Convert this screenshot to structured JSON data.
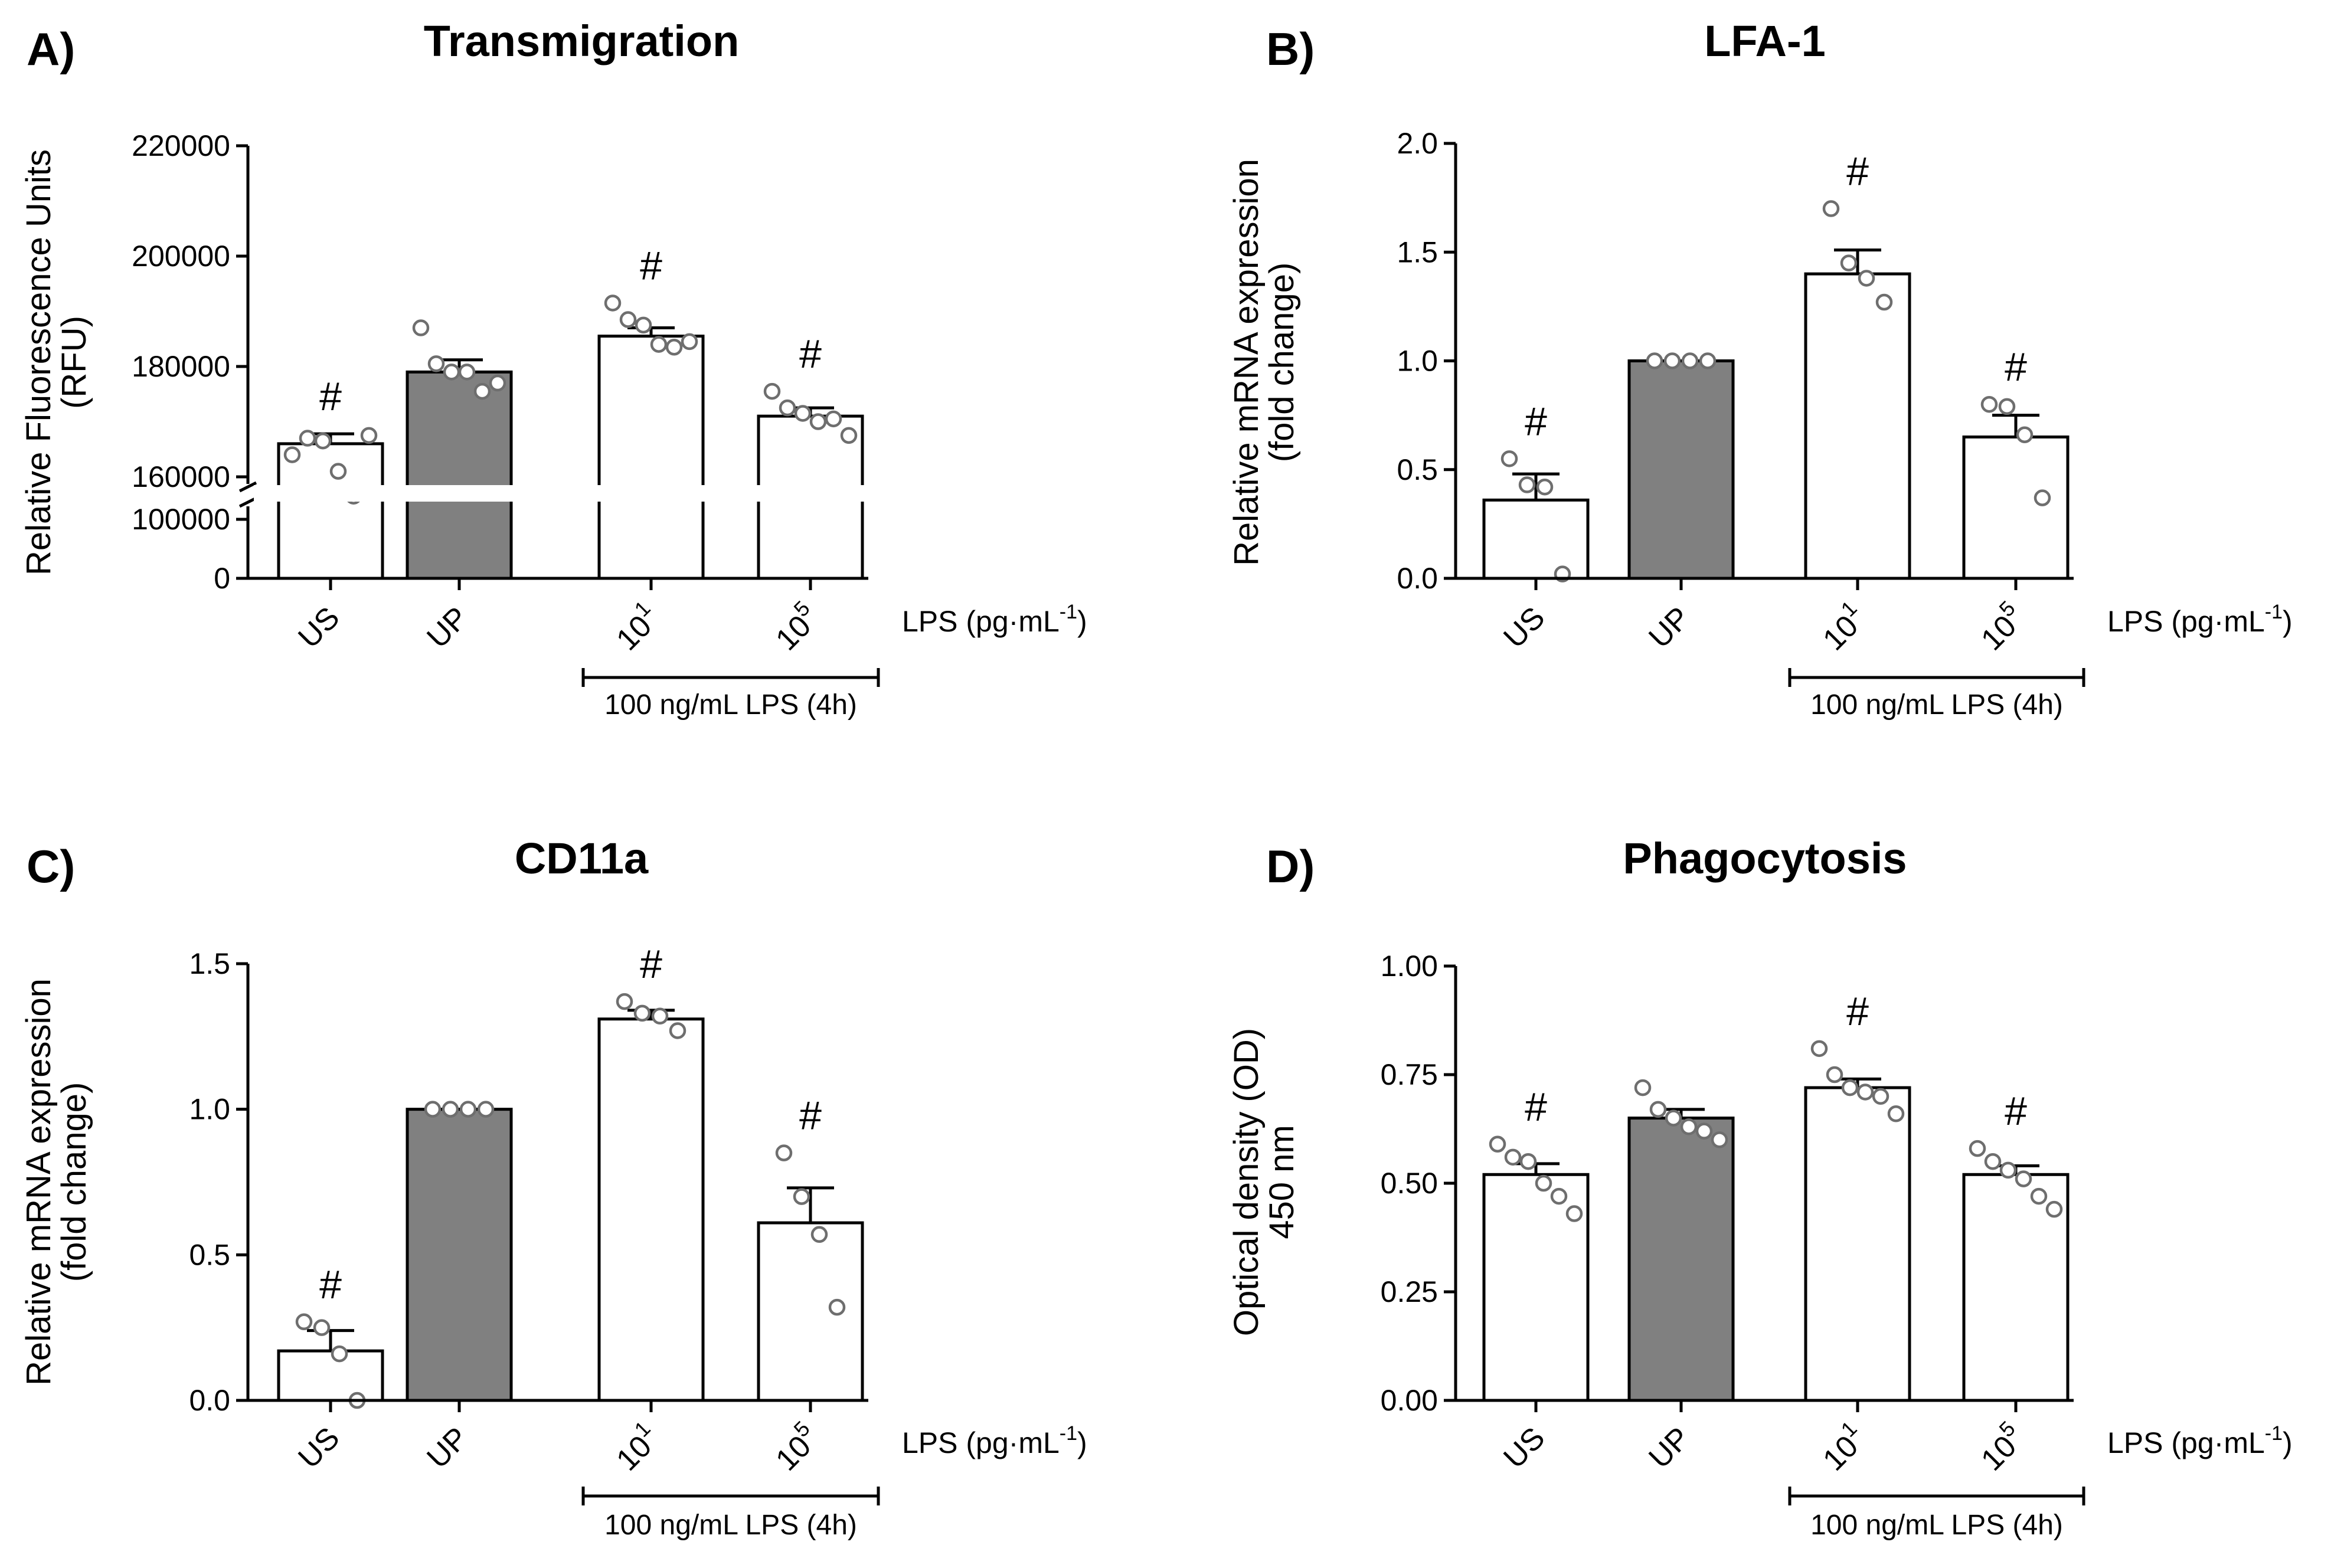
{
  "colors": {
    "bar_control": "#808080",
    "bar_default": "#ffffff",
    "axis": "#000000",
    "dot_edge": "#6e6e6e"
  },
  "chart_data": [
    {
      "panel": "A)",
      "type": "bar",
      "title": "Transmigration",
      "ylabel": [
        "Relative Fluorescence Units",
        "(RFU)"
      ],
      "categories": [
        "US",
        "UP",
        "10^1",
        "10^5"
      ],
      "category_labels": [
        {
          "base": "US",
          "sup": ""
        },
        {
          "base": "UP",
          "sup": ""
        },
        {
          "base": "10",
          "sup": "1"
        },
        {
          "base": "10",
          "sup": "5"
        }
      ],
      "x_unit": {
        "prefix": "LPS (pg·mL",
        "sup": "-1",
        "suffix": ")"
      },
      "group_label": "100 ng/mL LPS (4h)",
      "group_span": [
        "10^1",
        "10^5"
      ],
      "filled_category": "UP",
      "broken_axis": true,
      "ylim_lower": [
        0,
        100000
      ],
      "ylim_upper": [
        160000,
        220000
      ],
      "yticks_lower": [
        0,
        100000
      ],
      "yticks_upper": [
        160000,
        180000,
        200000,
        220000
      ],
      "ytick_labels_lower": [
        "0",
        "100000"
      ],
      "ytick_labels_upper": [
        "160000",
        "180000",
        "200000",
        "220000"
      ],
      "values": [
        166000,
        179000,
        185500,
        171000
      ],
      "errors": [
        1800,
        2200,
        1500,
        1500
      ],
      "points": [
        [
          164000,
          167000,
          166500,
          161000,
          156500,
          167500
        ],
        [
          187000,
          180500,
          179000,
          179000,
          175500,
          177000
        ],
        [
          191500,
          188500,
          187500,
          184000,
          183500,
          184500
        ],
        [
          175500,
          172500,
          171500,
          170000,
          170500,
          167500
        ]
      ],
      "significance": [
        "#",
        "",
        "#",
        "#"
      ]
    },
    {
      "panel": "B)",
      "type": "bar",
      "title": "LFA-1",
      "ylabel": [
        "Relative mRNA expression",
        "(fold change)"
      ],
      "categories": [
        "US",
        "UP",
        "10^1",
        "10^5"
      ],
      "category_labels": [
        {
          "base": "US",
          "sup": ""
        },
        {
          "base": "UP",
          "sup": ""
        },
        {
          "base": "10",
          "sup": "1"
        },
        {
          "base": "10",
          "sup": "5"
        }
      ],
      "x_unit": {
        "prefix": "LPS (pg·mL",
        "sup": "-1",
        "suffix": ")"
      },
      "group_label": "100 ng/mL LPS (4h)",
      "group_span": [
        "10^1",
        "10^5"
      ],
      "filled_category": "UP",
      "ylim": [
        0,
        2.0
      ],
      "yticks": [
        0,
        0.5,
        1.0,
        1.5,
        2.0
      ],
      "ytick_labels": [
        "0.0",
        "0.5",
        "1.0",
        "1.5",
        "2.0"
      ],
      "values": [
        0.36,
        1.0,
        1.4,
        0.65
      ],
      "errors": [
        0.12,
        0.0,
        0.11,
        0.1
      ],
      "points": [
        [
          0.55,
          0.43,
          0.42,
          0.02
        ],
        [
          1.0,
          1.0,
          1.0,
          1.0
        ],
        [
          1.7,
          1.45,
          1.38,
          1.27
        ],
        [
          0.8,
          0.79,
          0.66,
          0.37
        ]
      ],
      "significance": [
        "#",
        "",
        "#",
        "#"
      ]
    },
    {
      "panel": "C)",
      "type": "bar",
      "title": "CD11a",
      "ylabel": [
        "Relative mRNA expression",
        "(fold change)"
      ],
      "categories": [
        "US",
        "UP",
        "10^1",
        "10^5"
      ],
      "category_labels": [
        {
          "base": "US",
          "sup": ""
        },
        {
          "base": "UP",
          "sup": ""
        },
        {
          "base": "10",
          "sup": "1"
        },
        {
          "base": "10",
          "sup": "5"
        }
      ],
      "x_unit": {
        "prefix": "LPS (pg·mL",
        "sup": "-1",
        "suffix": ")"
      },
      "group_label": "100 ng/mL LPS (4h)",
      "group_span": [
        "10^1",
        "10^5"
      ],
      "filled_category": "UP",
      "ylim": [
        0,
        1.5
      ],
      "yticks": [
        0,
        0.5,
        1.0,
        1.5
      ],
      "ytick_labels": [
        "0.0",
        "0.5",
        "1.0",
        "1.5"
      ],
      "values": [
        0.17,
        1.0,
        1.31,
        0.61
      ],
      "errors": [
        0.07,
        0.0,
        0.03,
        0.12
      ],
      "points": [
        [
          0.27,
          0.25,
          0.16,
          0.0
        ],
        [
          1.0,
          1.0,
          1.0,
          1.0
        ],
        [
          1.37,
          1.33,
          1.32,
          1.27
        ],
        [
          0.85,
          0.7,
          0.57,
          0.32
        ]
      ],
      "significance": [
        "#",
        "",
        "#",
        "#"
      ]
    },
    {
      "panel": "D)",
      "type": "bar",
      "title": "Phagocytosis",
      "ylabel": [
        "Optical density (OD)",
        "450 nm"
      ],
      "categories": [
        "US",
        "UP",
        "10^1",
        "10^5"
      ],
      "category_labels": [
        {
          "base": "US",
          "sup": ""
        },
        {
          "base": "UP",
          "sup": ""
        },
        {
          "base": "10",
          "sup": "1"
        },
        {
          "base": "10",
          "sup": "5"
        }
      ],
      "x_unit": {
        "prefix": "LPS (pg·mL",
        "sup": "-1",
        "suffix": ")"
      },
      "group_label": "100 ng/mL LPS (4h)",
      "group_span": [
        "10^1",
        "10^5"
      ],
      "filled_category": "UP",
      "ylim": [
        0,
        1.0
      ],
      "yticks": [
        0,
        0.25,
        0.5,
        0.75,
        1.0
      ],
      "ytick_labels": [
        "0.00",
        "0.25",
        "0.50",
        "0.75",
        "1.00"
      ],
      "values": [
        0.52,
        0.65,
        0.72,
        0.52
      ],
      "errors": [
        0.025,
        0.02,
        0.02,
        0.02
      ],
      "points": [
        [
          0.59,
          0.56,
          0.55,
          0.5,
          0.47,
          0.43
        ],
        [
          0.72,
          0.67,
          0.65,
          0.63,
          0.62,
          0.6
        ],
        [
          0.81,
          0.75,
          0.72,
          0.71,
          0.7,
          0.66
        ],
        [
          0.58,
          0.55,
          0.53,
          0.51,
          0.47,
          0.44
        ]
      ],
      "significance": [
        "#",
        "",
        "#",
        "#"
      ]
    }
  ]
}
